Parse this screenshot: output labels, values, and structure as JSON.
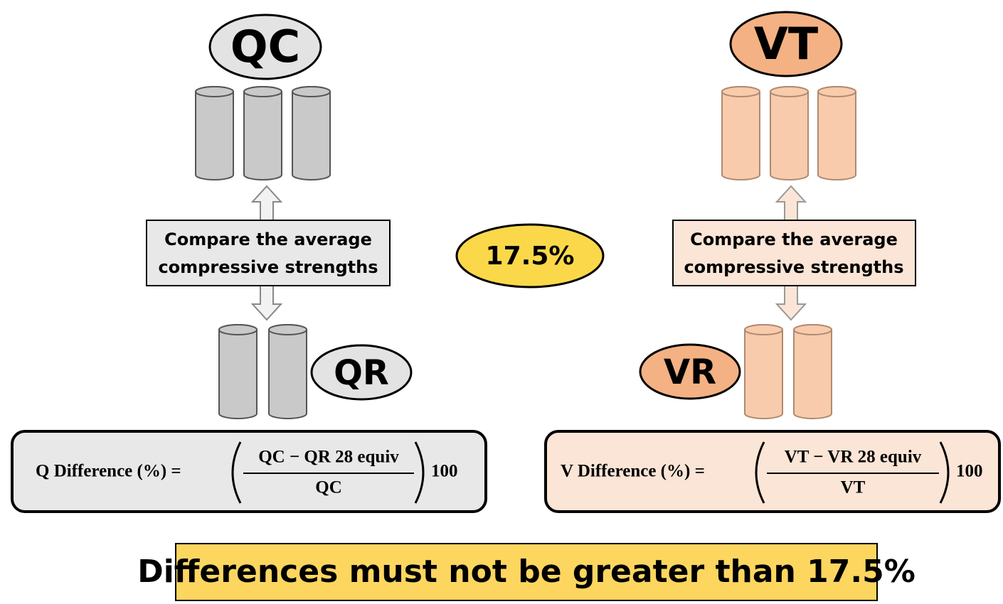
{
  "left": {
    "top_label": "QC",
    "compare_box": [
      "Compare the average",
      "compressive strengths"
    ],
    "bottom_label": "QR",
    "formula": {
      "label": "Q Difference (%) =",
      "numerator": "QC − QR 28 equiv",
      "denominator": "QC",
      "factor": "100"
    }
  },
  "right": {
    "top_label": "VT",
    "compare_box": [
      "Compare the average",
      "compressive strengths"
    ],
    "bottom_label": "VR",
    "formula": {
      "label": "V Difference (%) =",
      "numerator": "VT − VR 28 equiv",
      "denominator": "VT",
      "factor": "100"
    }
  },
  "center_label": "17.5%",
  "banner": "Differences must not be greater than 17.5%"
}
